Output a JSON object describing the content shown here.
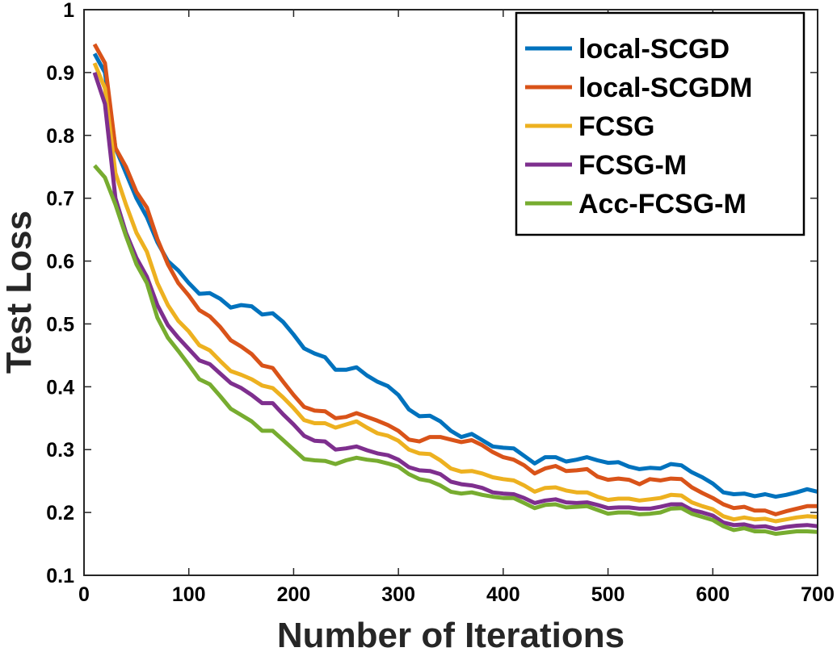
{
  "chart_data": {
    "type": "line",
    "title": "",
    "xlabel": "Number of Iterations",
    "ylabel": "Test Loss",
    "xlim": [
      0,
      700
    ],
    "ylim": [
      0.1,
      1
    ],
    "xticks": [
      0,
      100,
      200,
      300,
      400,
      500,
      600,
      700
    ],
    "yticks": [
      0.1,
      0.2,
      0.3,
      0.4,
      0.5,
      0.6,
      0.7,
      0.8,
      0.9,
      1
    ],
    "ytick_labels": [
      "0.1",
      "0.2",
      "0.3",
      "0.4",
      "0.5",
      "0.6",
      "0.7",
      "0.8",
      "0.9",
      "1"
    ],
    "legend_position": "top-right",
    "series": [
      {
        "name": "local-SCGD",
        "color": "#0072BD",
        "x": [
          10,
          20,
          30,
          40,
          50,
          60,
          70,
          80,
          90,
          100,
          110,
          120,
          130,
          140,
          150,
          160,
          170,
          180,
          190,
          200,
          210,
          220,
          230,
          240,
          250,
          260,
          270,
          280,
          290,
          300,
          310,
          320,
          330,
          340,
          350,
          360,
          370,
          380,
          390,
          400,
          410,
          420,
          430,
          440,
          450,
          460,
          470,
          480,
          490,
          500,
          510,
          520,
          530,
          540,
          550,
          560,
          570,
          580,
          590,
          600,
          610,
          620,
          630,
          640,
          650,
          660,
          670,
          680,
          690,
          700
        ],
        "y": [
          0.93,
          0.9,
          0.78,
          0.74,
          0.7,
          0.67,
          0.63,
          0.6,
          0.585,
          0.565,
          0.548,
          0.549,
          0.54,
          0.526,
          0.53,
          0.528,
          0.515,
          0.517,
          0.503,
          0.483,
          0.461,
          0.453,
          0.447,
          0.427,
          0.427,
          0.431,
          0.418,
          0.408,
          0.401,
          0.387,
          0.364,
          0.353,
          0.354,
          0.345,
          0.33,
          0.32,
          0.325,
          0.315,
          0.305,
          0.303,
          0.302,
          0.29,
          0.278,
          0.288,
          0.288,
          0.281,
          0.284,
          0.288,
          0.283,
          0.279,
          0.28,
          0.273,
          0.269,
          0.271,
          0.27,
          0.277,
          0.275,
          0.264,
          0.256,
          0.246,
          0.232,
          0.229,
          0.23,
          0.226,
          0.229,
          0.225,
          0.228,
          0.232,
          0.237,
          0.233
        ]
      },
      {
        "name": "local-SCGDM",
        "color": "#D95319",
        "x": [
          10,
          20,
          30,
          40,
          50,
          60,
          70,
          80,
          90,
          100,
          110,
          120,
          130,
          140,
          150,
          160,
          170,
          180,
          190,
          200,
          210,
          220,
          230,
          240,
          250,
          260,
          270,
          280,
          290,
          300,
          310,
          320,
          330,
          340,
          350,
          360,
          370,
          380,
          390,
          400,
          410,
          420,
          430,
          440,
          450,
          460,
          470,
          480,
          490,
          500,
          510,
          520,
          530,
          540,
          550,
          560,
          570,
          580,
          590,
          600,
          610,
          620,
          630,
          640,
          650,
          660,
          670,
          680,
          690,
          700
        ],
        "y": [
          0.945,
          0.915,
          0.78,
          0.75,
          0.71,
          0.685,
          0.635,
          0.595,
          0.565,
          0.545,
          0.522,
          0.512,
          0.495,
          0.474,
          0.464,
          0.452,
          0.434,
          0.43,
          0.408,
          0.387,
          0.368,
          0.362,
          0.361,
          0.35,
          0.352,
          0.358,
          0.352,
          0.346,
          0.339,
          0.33,
          0.316,
          0.313,
          0.32,
          0.32,
          0.316,
          0.312,
          0.315,
          0.307,
          0.296,
          0.288,
          0.284,
          0.275,
          0.262,
          0.27,
          0.274,
          0.266,
          0.267,
          0.269,
          0.257,
          0.252,
          0.254,
          0.252,
          0.245,
          0.253,
          0.251,
          0.254,
          0.253,
          0.24,
          0.231,
          0.223,
          0.213,
          0.207,
          0.209,
          0.203,
          0.203,
          0.197,
          0.202,
          0.206,
          0.21,
          0.21
        ]
      },
      {
        "name": "FCSG",
        "color": "#EDB120",
        "x": [
          10,
          20,
          30,
          40,
          50,
          60,
          70,
          80,
          90,
          100,
          110,
          120,
          130,
          140,
          150,
          160,
          170,
          180,
          190,
          200,
          210,
          220,
          230,
          240,
          250,
          260,
          270,
          280,
          290,
          300,
          310,
          320,
          330,
          340,
          350,
          360,
          370,
          380,
          390,
          400,
          410,
          420,
          430,
          440,
          450,
          460,
          470,
          480,
          490,
          500,
          510,
          520,
          530,
          540,
          550,
          560,
          570,
          580,
          590,
          600,
          610,
          620,
          630,
          640,
          650,
          660,
          670,
          680,
          690,
          700
        ],
        "y": [
          0.915,
          0.875,
          0.74,
          0.69,
          0.645,
          0.615,
          0.565,
          0.53,
          0.505,
          0.488,
          0.466,
          0.458,
          0.441,
          0.425,
          0.419,
          0.412,
          0.402,
          0.398,
          0.383,
          0.366,
          0.347,
          0.342,
          0.342,
          0.335,
          0.34,
          0.345,
          0.335,
          0.326,
          0.322,
          0.314,
          0.3,
          0.294,
          0.293,
          0.283,
          0.27,
          0.265,
          0.266,
          0.262,
          0.256,
          0.253,
          0.251,
          0.243,
          0.233,
          0.239,
          0.24,
          0.235,
          0.232,
          0.232,
          0.225,
          0.22,
          0.222,
          0.222,
          0.219,
          0.221,
          0.223,
          0.228,
          0.227,
          0.216,
          0.21,
          0.205,
          0.194,
          0.189,
          0.192,
          0.189,
          0.19,
          0.186,
          0.189,
          0.192,
          0.194,
          0.193
        ]
      },
      {
        "name": "FCSG-M",
        "color": "#7E2F8E",
        "x": [
          10,
          20,
          30,
          40,
          50,
          60,
          70,
          80,
          90,
          100,
          110,
          120,
          130,
          140,
          150,
          160,
          170,
          180,
          190,
          200,
          210,
          220,
          230,
          240,
          250,
          260,
          270,
          280,
          290,
          300,
          310,
          320,
          330,
          340,
          350,
          360,
          370,
          380,
          390,
          400,
          410,
          420,
          430,
          440,
          450,
          460,
          470,
          480,
          490,
          500,
          510,
          520,
          530,
          540,
          550,
          560,
          570,
          580,
          590,
          600,
          610,
          620,
          630,
          640,
          650,
          660,
          670,
          680,
          690,
          700
        ],
        "y": [
          0.9,
          0.85,
          0.7,
          0.645,
          0.605,
          0.575,
          0.53,
          0.498,
          0.478,
          0.46,
          0.442,
          0.436,
          0.421,
          0.406,
          0.398,
          0.387,
          0.374,
          0.374,
          0.356,
          0.34,
          0.322,
          0.314,
          0.313,
          0.3,
          0.302,
          0.305,
          0.299,
          0.294,
          0.291,
          0.284,
          0.272,
          0.267,
          0.266,
          0.261,
          0.249,
          0.245,
          0.243,
          0.239,
          0.232,
          0.23,
          0.229,
          0.223,
          0.215,
          0.219,
          0.221,
          0.216,
          0.215,
          0.216,
          0.212,
          0.207,
          0.208,
          0.208,
          0.206,
          0.206,
          0.209,
          0.213,
          0.213,
          0.204,
          0.2,
          0.195,
          0.184,
          0.18,
          0.181,
          0.177,
          0.178,
          0.174,
          0.177,
          0.179,
          0.18,
          0.178
        ]
      },
      {
        "name": "Acc-FCSG-M",
        "color": "#77AC30",
        "x": [
          10,
          20,
          30,
          40,
          50,
          60,
          70,
          80,
          90,
          100,
          110,
          120,
          130,
          140,
          150,
          160,
          170,
          180,
          190,
          200,
          210,
          220,
          230,
          240,
          250,
          260,
          270,
          280,
          290,
          300,
          310,
          320,
          330,
          340,
          350,
          360,
          370,
          380,
          390,
          400,
          410,
          420,
          430,
          440,
          450,
          460,
          470,
          480,
          490,
          500,
          510,
          520,
          530,
          540,
          550,
          560,
          570,
          580,
          590,
          600,
          610,
          620,
          630,
          640,
          650,
          660,
          670,
          680,
          690,
          700
        ],
        "y": [
          0.752,
          0.733,
          0.69,
          0.64,
          0.595,
          0.565,
          0.51,
          0.478,
          0.457,
          0.435,
          0.412,
          0.404,
          0.385,
          0.365,
          0.355,
          0.345,
          0.33,
          0.33,
          0.315,
          0.3,
          0.285,
          0.283,
          0.282,
          0.277,
          0.283,
          0.287,
          0.284,
          0.282,
          0.278,
          0.273,
          0.261,
          0.253,
          0.25,
          0.243,
          0.233,
          0.23,
          0.232,
          0.228,
          0.225,
          0.223,
          0.223,
          0.215,
          0.207,
          0.212,
          0.213,
          0.208,
          0.209,
          0.21,
          0.204,
          0.198,
          0.2,
          0.2,
          0.197,
          0.198,
          0.2,
          0.206,
          0.207,
          0.198,
          0.193,
          0.188,
          0.178,
          0.172,
          0.175,
          0.17,
          0.17,
          0.166,
          0.168,
          0.17,
          0.17,
          0.169
        ]
      }
    ]
  }
}
